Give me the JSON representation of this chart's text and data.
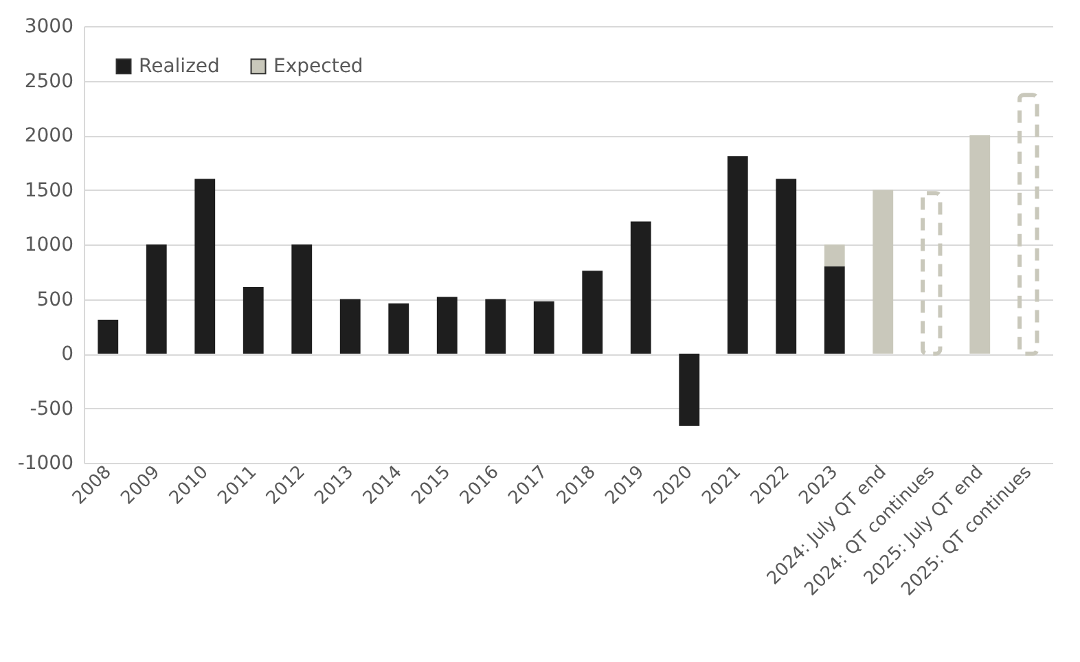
{
  "chart_data": {
    "type": "bar",
    "stacked": true,
    "categories": [
      "2008",
      "2009",
      "2010",
      "2011",
      "2012",
      "2013",
      "2014",
      "2015",
      "2016",
      "2017",
      "2018",
      "2019",
      "2020",
      "2021",
      "2022",
      "2023",
      "2024: July QT end",
      "2024: QT continues",
      "2025: July QT end",
      "2025: QT continues"
    ],
    "series": [
      {
        "name": "Realized",
        "color": "#1e1e1e",
        "values": [
          310,
          1000,
          1600,
          610,
          1000,
          500,
          460,
          520,
          500,
          480,
          760,
          1210,
          -660,
          1810,
          1600,
          800,
          null,
          null,
          null,
          null
        ]
      },
      {
        "name": "Expected",
        "color": "#c9c8bb",
        "values": [
          null,
          null,
          null,
          null,
          null,
          null,
          null,
          null,
          null,
          null,
          null,
          null,
          null,
          null,
          null,
          200,
          1500,
          null,
          2000,
          null
        ]
      },
      {
        "color": "#c9c8bb",
        "line_style": "dashed",
        "values": [
          null,
          null,
          null,
          null,
          null,
          null,
          null,
          null,
          null,
          null,
          null,
          null,
          null,
          null,
          null,
          null,
          null,
          1470,
          null,
          2370
        ]
      }
    ],
    "ylim": [
      -1000,
      3000
    ],
    "yticks": [
      -1000,
      -500,
      0,
      500,
      1000,
      1500,
      2000,
      2500,
      3000
    ],
    "grid": "y",
    "legend": "top left"
  }
}
